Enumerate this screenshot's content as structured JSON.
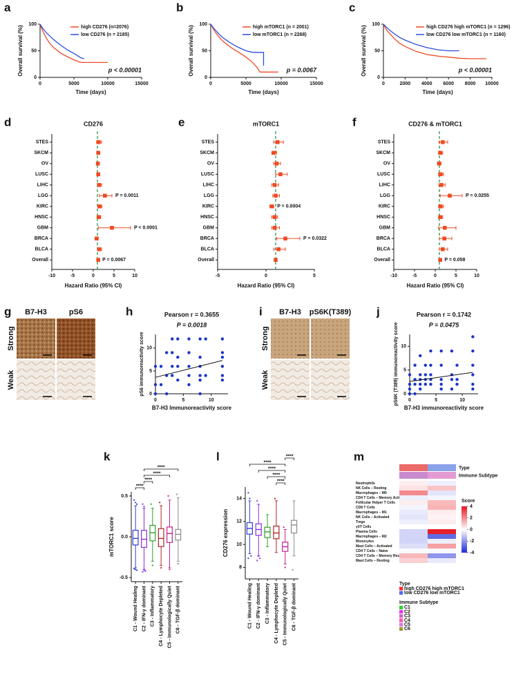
{
  "chart_data": [
    {
      "type": "line",
      "label": "a",
      "x_label": "Time (days)",
      "y_label": "Overall survival (%)",
      "annotation": "p < 0.00001",
      "xlim": [
        0,
        15000
      ],
      "xticks": [
        0,
        5000,
        10000,
        15000
      ],
      "ylim": [
        0,
        100
      ],
      "yticks": [
        0,
        50,
        100
      ],
      "legend": "upper right",
      "series": [
        {
          "name": "high CD276 (n=2076)",
          "color": "#f04a23",
          "x": [
            0,
            300,
            600,
            1000,
            1500,
            2000,
            2500,
            3000,
            4000,
            5000,
            6000,
            8000,
            10000
          ],
          "values": [
            100,
            90,
            82,
            72,
            63,
            56,
            51,
            46,
            39,
            33,
            28,
            28,
            28
          ]
        },
        {
          "name": "low CD276 (n = 2185)",
          "color": "#2a4be0",
          "x": [
            0,
            300,
            600,
            1000,
            1500,
            2000,
            2500,
            3000,
            4000,
            5000,
            6000,
            6500
          ],
          "values": [
            100,
            94,
            89,
            83,
            77,
            71,
            66,
            61,
            52,
            45,
            37,
            35
          ]
        }
      ]
    },
    {
      "type": "line",
      "label": "b",
      "x_label": "Time (days)",
      "y_label": "Overall survival (%)",
      "annotation": "p = 0.0067",
      "xlim": [
        0,
        15000
      ],
      "xticks": [
        0,
        5000,
        10000,
        15000
      ],
      "ylim": [
        0,
        100
      ],
      "yticks": [
        0,
        50,
        100
      ],
      "legend": "upper right",
      "series": [
        {
          "name": "high mTORC1 (n = 2001)",
          "color": "#f04a23",
          "x": [
            0,
            500,
            1000,
            1500,
            2000,
            3000,
            4000,
            5000,
            5500,
            6000,
            6500,
            7000,
            9600
          ],
          "values": [
            100,
            88,
            79,
            71,
            65,
            55,
            47,
            38,
            33,
            27,
            20,
            10,
            10
          ]
        },
        {
          "name": "low mTORC1 (n = 2268)",
          "color": "#2a4be0",
          "x": [
            0,
            500,
            1000,
            1500,
            2000,
            3000,
            4000,
            5000,
            6000,
            7000,
            7500,
            7500
          ],
          "values": [
            100,
            91,
            84,
            77,
            72,
            63,
            56,
            50,
            47,
            47,
            47,
            22
          ]
        }
      ]
    },
    {
      "type": "line",
      "label": "c",
      "x_label": "Time (days)",
      "y_label": "Overall survival (%)",
      "annotation": "p < 0.00001",
      "xlim": [
        0,
        10000
      ],
      "xticks": [
        0,
        2000,
        4000,
        6000,
        8000,
        10000
      ],
      "ylim": [
        0,
        100
      ],
      "yticks": [
        0,
        50,
        100
      ],
      "legend": "upper right",
      "series": [
        {
          "name": "high CD276 high mTORC1 (n = 1296)",
          "color": "#f04a23",
          "x": [
            0,
            250,
            500,
            1000,
            1500,
            2000,
            3000,
            4000,
            5000,
            6000,
            7000,
            8000,
            9500
          ],
          "values": [
            100,
            90,
            84,
            73,
            64,
            58,
            49,
            43,
            40,
            38,
            36,
            35,
            35
          ]
        },
        {
          "name": "low CD276 low mTORC1 (n = 1160)",
          "color": "#2a4be0",
          "x": [
            0,
            250,
            500,
            1000,
            1500,
            2000,
            3000,
            4000,
            5000,
            6000,
            7000
          ],
          "values": [
            100,
            95,
            90,
            82,
            75,
            70,
            62,
            56,
            52,
            50,
            50
          ]
        }
      ]
    },
    {
      "type": "forest",
      "label": "d",
      "title": "CD276",
      "x_label": "Hazard Ratio (95% CI)",
      "xlim": [
        -10,
        10
      ],
      "xticks": [
        -10,
        -5,
        0,
        5,
        10
      ],
      "reference_line": 1,
      "reference_color": "#1a8a3a",
      "color": "#f04a23",
      "categories": [
        "STES",
        "SKCM",
        "OV",
        "LUSC",
        "LIHC",
        "LGG",
        "KIRC",
        "HNSC",
        "GBM",
        "BRCA",
        "BLCA",
        "Overall"
      ],
      "values": [
        1.3,
        1.2,
        1.1,
        1.2,
        1.4,
        2.8,
        1.5,
        1.3,
        4.5,
        0.8,
        1.4,
        1.2
      ],
      "ci_low": [
        0.8,
        0.9,
        0.8,
        0.9,
        1.0,
        1.5,
        1.1,
        0.9,
        1.2,
        0.5,
        1.0,
        1.05
      ],
      "ci_high": [
        2.0,
        1.6,
        1.5,
        1.6,
        2.0,
        4.5,
        2.1,
        1.8,
        9.0,
        1.2,
        2.0,
        1.35
      ],
      "p_labels": [
        null,
        null,
        null,
        null,
        null,
        "P = 0.0011",
        null,
        null,
        "P < 0.0001",
        null,
        null,
        "P = 0.0067"
      ]
    },
    {
      "type": "forest",
      "label": "e",
      "title": "mTORC1",
      "x_label": "Hazard Ratio (95% CI)",
      "xlim": [
        -5,
        5
      ],
      "xticks": [
        -5,
        0,
        5
      ],
      "reference_line": 1,
      "reference_color": "#1a8a3a",
      "color": "#f04a23",
      "categories": [
        "STES",
        "SKCM",
        "OV",
        "LUSC",
        "LIHC",
        "LGG",
        "KIRC",
        "HNSC",
        "GBM",
        "BRCA",
        "BLCA",
        "Overall"
      ],
      "values": [
        1.2,
        0.8,
        1.1,
        1.5,
        0.9,
        1.0,
        0.6,
        0.9,
        0.9,
        2.0,
        1.3,
        1.0
      ],
      "ci_low": [
        0.8,
        0.6,
        0.8,
        1.0,
        0.6,
        0.7,
        0.4,
        0.6,
        0.6,
        1.1,
        0.8,
        0.9
      ],
      "ci_high": [
        1.8,
        1.1,
        1.5,
        2.2,
        1.3,
        1.4,
        0.8,
        1.2,
        1.4,
        3.5,
        2.0,
        1.1
      ],
      "p_labels": [
        null,
        null,
        null,
        null,
        null,
        null,
        "P = 0.0004",
        null,
        null,
        "P = 0.0322",
        null,
        null
      ]
    },
    {
      "type": "forest",
      "label": "f",
      "title": "CD276 & mTORC1",
      "x_label": "Hazard Ratio (95% CI)",
      "xlim": [
        -10,
        10
      ],
      "xticks": [
        -10,
        -5,
        0,
        5,
        10
      ],
      "reference_line": 1,
      "reference_color": "#1a8a3a",
      "color": "#f04a23",
      "categories": [
        "STES",
        "SKCM",
        "OV",
        "LUSC",
        "LIHC",
        "LGG",
        "KIRC",
        "HNSC",
        "GBM",
        "BRCA",
        "BLCA",
        "Overall"
      ],
      "values": [
        1.8,
        1.2,
        0.9,
        1.3,
        1.5,
        3.5,
        1.3,
        1.2,
        2.3,
        2.2,
        1.8,
        1.2
      ],
      "ci_low": [
        0.9,
        0.8,
        0.6,
        0.8,
        0.9,
        1.2,
        0.8,
        0.8,
        0.8,
        1.0,
        1.0,
        1.0
      ],
      "ci_high": [
        3.0,
        1.8,
        1.4,
        2.0,
        2.4,
        6.5,
        2.0,
        1.8,
        5.0,
        4.0,
        3.0,
        1.4
      ],
      "p_labels": [
        null,
        null,
        null,
        null,
        null,
        "P = 0.0255",
        null,
        null,
        null,
        null,
        null,
        "P = 0.058"
      ]
    },
    {
      "type": "scatter",
      "label": "h",
      "title": "Pearson r = 0.3655",
      "subtitle": "P = 0.0018",
      "x_label": "B7-H3 Immunoreactivity score",
      "y_label": "pS6 immunoreactivity score",
      "color": "#1a35c8",
      "xlim": [
        0,
        13
      ],
      "xticks": [
        0,
        5,
        10
      ],
      "ylim": [
        0,
        13
      ],
      "yticks": [
        0,
        5,
        10
      ],
      "x": [
        0,
        0,
        0,
        1,
        1,
        2,
        2,
        2,
        3,
        3,
        3,
        3,
        4,
        4,
        4,
        4,
        6,
        6,
        6,
        6,
        6,
        8,
        8,
        8,
        8,
        8,
        8,
        9,
        9,
        12,
        12,
        12,
        12,
        12,
        12
      ],
      "values": [
        0,
        2,
        6,
        2,
        6,
        0,
        4,
        9,
        4,
        6,
        9,
        12,
        3,
        6,
        8,
        12,
        2,
        4,
        6,
        9,
        12,
        0,
        3,
        4,
        6,
        8,
        12,
        4,
        12,
        3,
        4,
        6,
        8,
        9,
        12
      ],
      "trendline": {
        "x": [
          0,
          12
        ],
        "values": [
          3.6,
          7.3
        ]
      }
    },
    {
      "type": "scatter",
      "label": "j",
      "title": "Pearson r = 0.1742",
      "subtitle": "P = 0.0475",
      "x_label": "B7-H3 immunoreactivity score",
      "y_label": "pS6K (T389) immunoreactivity score",
      "color": "#1a35c8",
      "xlim": [
        0,
        13
      ],
      "xticks": [
        0,
        5,
        10
      ],
      "ylim": [
        0,
        12.5
      ],
      "yticks": [
        0,
        5,
        10
      ],
      "x": [
        0,
        0,
        0,
        0,
        1,
        1,
        1,
        1,
        2,
        2,
        2,
        2,
        2,
        3,
        3,
        3,
        3,
        4,
        4,
        4,
        4,
        4,
        6,
        6,
        6,
        6,
        6,
        8,
        8,
        8,
        8,
        9,
        9,
        9,
        12,
        12,
        12,
        12,
        12,
        12
      ],
      "values": [
        0,
        1,
        2,
        4,
        0,
        2,
        3,
        6,
        1,
        2,
        3,
        4,
        8,
        2,
        3,
        4,
        6,
        2,
        3,
        4,
        6,
        9,
        1,
        2,
        3,
        6,
        9,
        1,
        3,
        4,
        9,
        2,
        3,
        6,
        1,
        2,
        4,
        6,
        9,
        12
      ],
      "trendline": {
        "x": [
          0,
          12
        ],
        "values": [
          2.6,
          4.5
        ]
      }
    },
    {
      "type": "box",
      "label": "k",
      "y_label": "mTORC1 score",
      "ylim": [
        -0.55,
        0.55
      ],
      "yticks": [
        -0.5,
        {
          "value": 0,
          "label": "0.0"
        },
        0.5
      ],
      "categories": [
        "C1 - Wound Healing",
        "C2 - IFN-γ dominant",
        "C3 - Inflammatory",
        "C4 - Lymphocyte Depleted",
        "C5 - Immunologically Quiet",
        "C6 - TGF-β dominant"
      ],
      "colors": [
        "#2f3fd0",
        "#8a2be2",
        "#2e9e2e",
        "#b22222",
        "#c0208c",
        "#8c8c8c"
      ],
      "min": [
        -0.38,
        -0.4,
        -0.3,
        -0.35,
        -0.38,
        -0.3
      ],
      "q1": [
        -0.1,
        -0.13,
        -0.05,
        -0.12,
        -0.07,
        -0.04
      ],
      "median": [
        -0.02,
        -0.03,
        0.05,
        -0.02,
        0.04,
        0.03
      ],
      "q3": [
        0.08,
        0.08,
        0.14,
        0.1,
        0.12,
        0.09
      ],
      "max": [
        0.38,
        0.35,
        0.35,
        0.38,
        0.45,
        0.48
      ],
      "outliers": [
        [
          0.45,
          0.42,
          0.4,
          -0.39,
          -0.4,
          -0.41
        ],
        [
          0.4,
          0.37,
          -0.42,
          -0.43,
          -0.41
        ],
        [
          0.4,
          -0.35
        ],
        [
          0.42,
          -0.38
        ],
        [
          0.5,
          -0.4
        ],
        [
          0.52,
          -0.33
        ]
      ],
      "comparisons": [
        {
          "pair": [
            "C2 - IFN-γ dominant",
            "C6 - TGF-β dominant"
          ],
          "label": "****"
        },
        {
          "pair": [
            "C2 - IFN-γ dominant",
            "C5 - Immunologically Quiet"
          ],
          "label": "****"
        },
        {
          "pair": [
            "C2 - IFN-γ dominant",
            "C3 - Inflammatory"
          ],
          "label": "****"
        },
        {
          "pair": [
            "C1 - Wound Healing",
            "C2 - IFN-γ dominant"
          ],
          "label": "****"
        }
      ]
    },
    {
      "type": "box",
      "label": "l",
      "y_label": "CD276 expression",
      "ylim": [
        7,
        15
      ],
      "yticks": [
        8,
        10,
        12,
        14
      ],
      "categories": [
        "C1 - Wound Healing",
        "C2 - IFN-γ dominant",
        "C3 - Inflammatory",
        "C4 - Lymphocyte Depleted",
        "C5 - Immunologically Quiet",
        "C6 - TGF-β dominant"
      ],
      "colors": [
        "#2f3fd0",
        "#8a2be2",
        "#2e9e2e",
        "#b22222",
        "#c0208c",
        "#8c8c8c"
      ],
      "min": [
        9.2,
        9.0,
        9.8,
        9.3,
        8.3,
        9.0
      ],
      "q1": [
        10.9,
        10.8,
        10.6,
        10.5,
        9.4,
        11.0
      ],
      "median": [
        11.4,
        11.3,
        11.1,
        11.0,
        9.8,
        11.7
      ],
      "q3": [
        11.9,
        11.8,
        11.5,
        11.6,
        10.2,
        12.1
      ],
      "max": [
        13.8,
        13.5,
        12.6,
        13.8,
        11.3,
        13.8
      ],
      "outliers": [
        [
          14.5,
          14.0,
          9.0,
          8.8
        ],
        [
          13.8,
          9.0,
          8.8,
          8.6
        ],
        [],
        [
          14.0
        ],
        [
          11.5,
          8.0
        ],
        [
          7.8
        ]
      ],
      "comparisons": [
        {
          "pair": [
            "C5 - Immunologically Quiet",
            "C6 - TGF-β dominant"
          ],
          "label": "****"
        },
        {
          "pair": [
            "C1 - Wound Healing",
            "C5 - Immunologically Quiet"
          ],
          "label": "****"
        },
        {
          "pair": [
            "C2 - IFN-γ dominant",
            "C5 - Immunologically Quiet"
          ],
          "label": "****"
        },
        {
          "pair": [
            "C3 - Inflammatory",
            "C5 - Immunologically Quiet"
          ],
          "label": "****"
        },
        {
          "pair": [
            "C4 - Lymphocyte Depleted",
            "C5 - Immunologically Quiet"
          ],
          "label": "****"
        }
      ]
    },
    {
      "type": "heatmap",
      "label": "m",
      "colorbar_title": "Score",
      "zlim": [
        -4,
        4
      ],
      "zticks": [
        4,
        2,
        0,
        -2,
        -4
      ],
      "colorscale": [
        "#1f2bd6",
        "#ffffff",
        "#e8141c"
      ],
      "annotation_rows": [
        {
          "name": "Type",
          "colors": [
            "#ec6a6a",
            "#8aa2ea"
          ]
        },
        {
          "name": "Immune Subtype",
          "colors": [
            "#c98ad0",
            "#e39ad0"
          ]
        }
      ],
      "rows": [
        "Neutrophils",
        "NK Cells – Resting",
        "Macrophages – M0",
        "CD4 T Cells – Memory Activated",
        "Follicular Helper T Cells",
        "CD8 T Cells",
        "Macrophages – M1",
        "NK Cells – Activated",
        "Tregs",
        "γδT Cells",
        "Plasma Cells",
        "Macrophages – M2",
        "Monocytes",
        "Mast Cells – Activated",
        "CD4 T Cells – Naive",
        "CD4 T Cells – Memory Resting",
        "Mast Cells – Resting"
      ],
      "values": [
        [
          0.3,
          -0.3
        ],
        [
          0.5,
          1.0
        ],
        [
          2.0,
          -0.5
        ],
        [
          -0.3,
          -0.2
        ],
        [
          0.3,
          1.2
        ],
        [
          -0.2,
          1.3
        ],
        [
          -0.4,
          0.3
        ],
        [
          -0.5,
          0.2
        ],
        [
          -0.3,
          0.3
        ],
        [
          0,
          0
        ],
        [
          -0.8,
          3.8
        ],
        [
          -0.8,
          -2.8
        ],
        [
          -0.8,
          -0.3
        ],
        [
          -0.6,
          1.6
        ],
        [
          -0.1,
          -0.1
        ],
        [
          1.2,
          -2.0
        ],
        [
          0.8,
          -0.4
        ]
      ],
      "legends": [
        {
          "title": "Type",
          "items": [
            {
              "name": "high CD276 high mTORC1",
              "color": "#ff2a2a"
            },
            {
              "name": "low CD276 low mTORC1",
              "color": "#4c6bff"
            }
          ]
        },
        {
          "title": "Immune Subtype",
          "items": [
            {
              "name": "C1",
              "color": "#33cc33"
            },
            {
              "name": "C2",
              "color": "#ee33ee"
            },
            {
              "name": "C3",
              "color": "#cc66cc"
            },
            {
              "name": "C4",
              "color": "#ff55aa"
            },
            {
              "name": "C5",
              "color": "#dd77dd"
            },
            {
              "name": "C6",
              "color": "#999933"
            }
          ]
        }
      ]
    }
  ],
  "image_panels": [
    {
      "label": "g",
      "columns": [
        "B7-H3",
        "pS6"
      ],
      "rows": [
        "Strong",
        "Weak"
      ]
    },
    {
      "label": "i",
      "columns": [
        "B7-H3",
        "pS6K(T389)"
      ],
      "rows": [
        "Strong",
        "Weak"
      ]
    }
  ]
}
